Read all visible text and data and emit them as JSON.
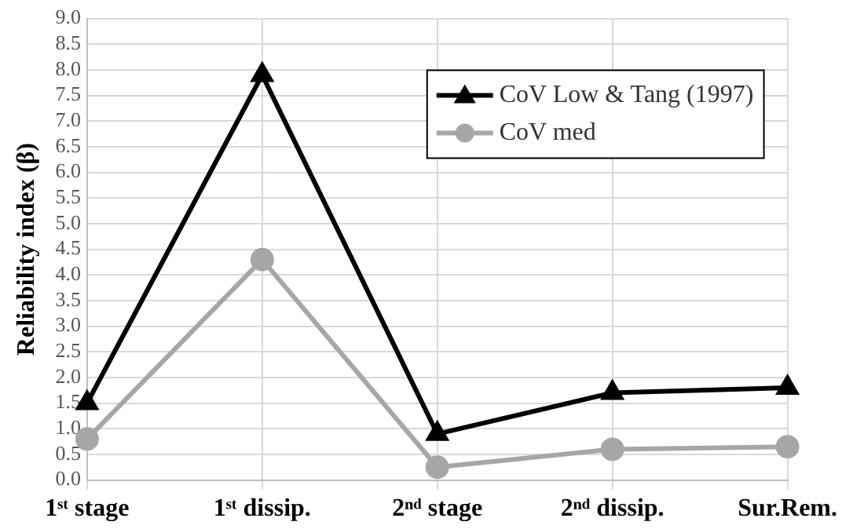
{
  "chart_data": {
    "type": "line",
    "ylabel": "Reliability index (β)",
    "categories": [
      "1ˢᵗ stage",
      "1ˢᵗ dissip.",
      "2ⁿᵈ stage",
      "2ⁿᵈ dissip.",
      "Sur.Rem."
    ],
    "series": [
      {
        "name": "CoV Low & Tang (1997)",
        "color": "#000000",
        "marker": "triangle",
        "values": [
          1.5,
          7.9,
          0.9,
          1.7,
          1.8
        ]
      },
      {
        "name": "CoV med",
        "color": "#a6a6a6",
        "marker": "circle",
        "values": [
          0.8,
          4.3,
          0.25,
          0.6,
          0.65
        ]
      }
    ],
    "ylim": [
      0,
      9
    ],
    "yticks": [
      {
        "value": 0,
        "label": "0.0"
      },
      0.5,
      {
        "value": 1,
        "label": "1.0"
      },
      1.5,
      {
        "value": 2,
        "label": "2.0"
      },
      2.5,
      {
        "value": 3,
        "label": "3.0"
      },
      3.5,
      {
        "value": 4,
        "label": "4.0"
      },
      4.5,
      {
        "value": 5,
        "label": "5.0"
      },
      5.5,
      {
        "value": 6,
        "label": "6.0"
      },
      6.5,
      {
        "value": 7,
        "label": "7.0"
      },
      7.5,
      {
        "value": 8,
        "label": "8.0"
      },
      8.5,
      {
        "value": 9,
        "label": "9.0"
      }
    ],
    "grid": true,
    "legend": "top right",
    "line_style": "solid"
  }
}
